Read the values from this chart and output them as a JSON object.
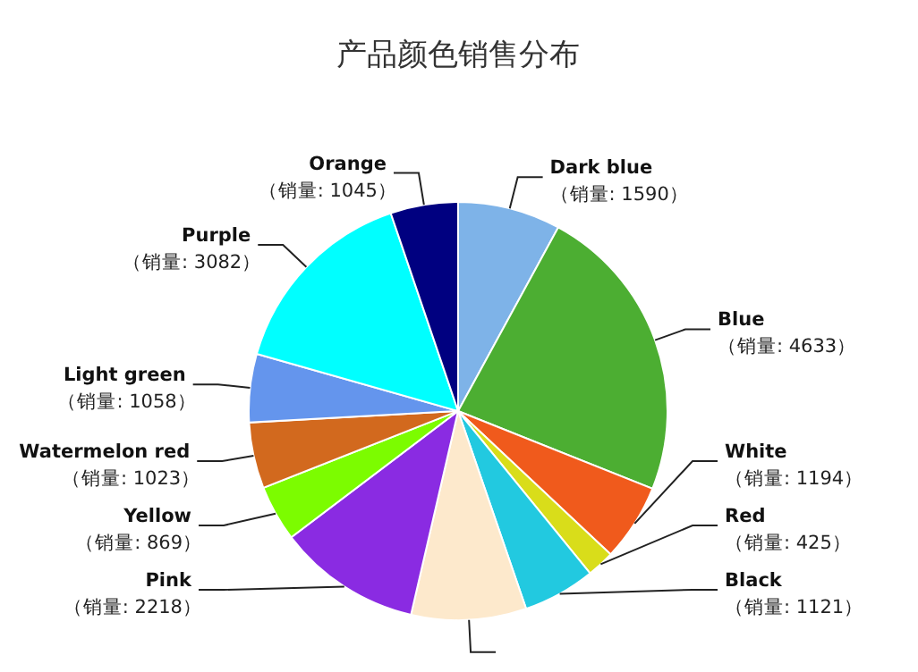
{
  "chart_data": {
    "type": "pie",
    "title": "产品颜色销售分布",
    "categories": [
      "Dark blue",
      "Blue",
      "White",
      "Red",
      "Black",
      null,
      "Pink",
      "Yellow",
      "Watermelon red",
      "Light green",
      "Purple",
      "Orange"
    ],
    "values": [
      1590,
      4633,
      1194,
      425,
      1121,
      1780,
      2218,
      869,
      1023,
      1058,
      3082,
      1045
    ],
    "value_labels": [
      "（销量: 1590）",
      "（销量: 4633）",
      "（销量: 1194）",
      "（销量: 425）",
      "（销量: 1121）",
      null,
      "（销量: 2218）",
      "（销量: 869）",
      "（销量: 1023）",
      "（销量: 1058）",
      "（销量: 3082）",
      "（销量: 1045）"
    ],
    "colors": [
      "#7eb3e8",
      "#4cae32",
      "#f05a1c",
      "#d9dd1a",
      "#22c9e0",
      "#fde9cc",
      "#8a2be2",
      "#7cfc00",
      "#d2691e",
      "#6495ed",
      "#00ffff",
      "#000080"
    ]
  }
}
